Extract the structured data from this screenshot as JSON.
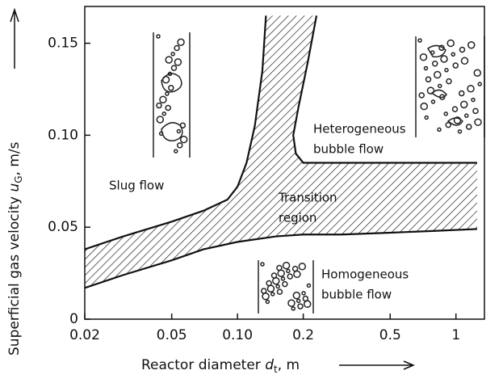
{
  "chart_data": {
    "type": "line",
    "x_label": [
      "Reactor diameter",
      "d",
      "t",
      ", m"
    ],
    "y_label": [
      "Superficial gas velocity",
      "u",
      "G",
      ", m/s"
    ],
    "xscale": "log",
    "xlim": [
      0.02,
      1.35
    ],
    "ylim": [
      0,
      0.17
    ],
    "xticks": [
      0.02,
      0.05,
      {
        "value": 0.1,
        "label": "0.10"
      },
      0.2,
      0.5,
      1
    ],
    "yticks": [
      0,
      0.05,
      {
        "value": 0.1,
        "label": "0.10"
      },
      0.15
    ],
    "color": "#111",
    "series": [
      {
        "x": [
          0.02,
          0.03,
          0.05,
          0.07,
          0.09,
          0.1,
          0.11,
          0.12,
          0.13,
          0.135
        ],
        "values": [
          0.038,
          0.045,
          0.053,
          0.059,
          0.065,
          0.072,
          0.085,
          0.105,
          0.135,
          0.165
        ]
      },
      {
        "x": [
          0.23,
          0.21,
          0.19,
          0.18,
          0.185,
          0.2,
          0.3,
          0.6,
          1.25
        ],
        "values": [
          0.165,
          0.14,
          0.115,
          0.1,
          0.09,
          0.085,
          0.085,
          0.085,
          0.085
        ]
      },
      {
        "x": [
          0.02,
          0.03,
          0.05,
          0.07,
          0.1,
          0.15,
          0.2,
          0.3,
          0.5,
          0.8,
          1.25
        ],
        "values": [
          0.017,
          0.024,
          0.032,
          0.038,
          0.042,
          0.045,
          0.046,
          0.046,
          0.047,
          0.048,
          0.049
        ]
      }
    ],
    "annotations": [
      [
        "Slug flow"
      ],
      [
        "Transition",
        "region"
      ],
      [
        "Heterogeneous",
        "bubble flow"
      ],
      [
        "Homogeneous",
        "bubble flow"
      ]
    ]
  }
}
